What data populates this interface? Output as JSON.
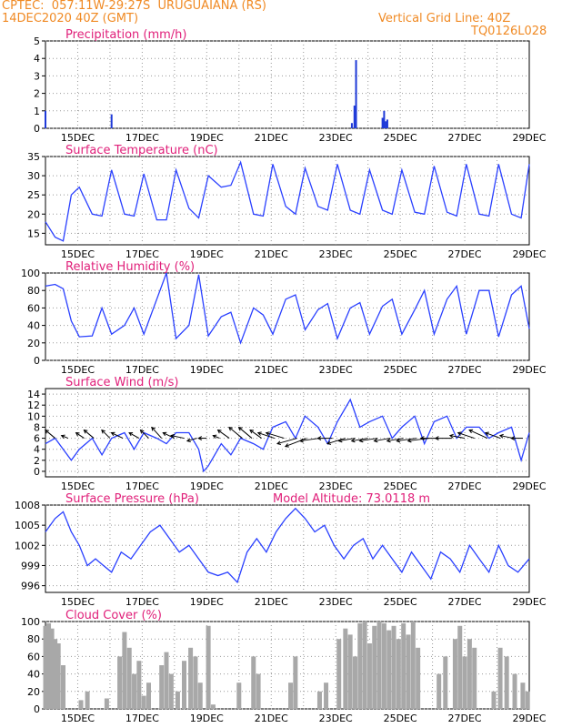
{
  "header": {
    "line1_left": "CPTEC:  057:11W-29:27S  URUGUAIANA (RS)",
    "line2_left": "14DEC2020 40Z (GMT)",
    "line1_right": "Vertical Grid Line: 40Z",
    "line2_right": "TQ0126L028"
  },
  "colors": {
    "header": "#f08a24",
    "title": "#e0207a",
    "line": "#2a40ff",
    "bar_blue": "#1f3ad8",
    "bar_gray": "#a8a8a8",
    "grid": "#999999"
  },
  "chart_data": [
    {
      "type": "bar",
      "title": "Precipitation (mm/h)",
      "ylim": [
        0,
        5
      ],
      "yticks": [
        "0",
        "1",
        "2",
        "3",
        "4",
        "5"
      ],
      "xticks": [
        "15DEC",
        "17DEC",
        "19DEC",
        "21DEC",
        "23DEC",
        "25DEC",
        "27DEC",
        "29DEC"
      ],
      "x": [
        14.0,
        16.05,
        23.5,
        23.58,
        23.63,
        24.45,
        24.5,
        24.55,
        24.6
      ],
      "values": [
        1.0,
        0.8,
        0.3,
        1.3,
        3.9,
        0.6,
        1.0,
        0.4,
        0.5
      ]
    },
    {
      "type": "line",
      "title": "Surface Temperature (nC)",
      "ylim": [
        12,
        35
      ],
      "yticks": [
        "15",
        "20",
        "25",
        "30",
        "35"
      ],
      "xticks": [
        "15DEC",
        "17DEC",
        "19DEC",
        "21DEC",
        "23DEC",
        "25DEC",
        "27DEC",
        "29DEC"
      ],
      "x": [
        14.0,
        14.3,
        14.55,
        14.8,
        15.05,
        15.45,
        15.75,
        16.05,
        16.45,
        16.75,
        17.05,
        17.45,
        17.75,
        18.05,
        18.45,
        18.75,
        19.05,
        19.45,
        19.75,
        20.05,
        20.45,
        20.75,
        21.05,
        21.45,
        21.75,
        22.05,
        22.45,
        22.75,
        23.05,
        23.45,
        23.75,
        24.05,
        24.45,
        24.75,
        25.05,
        25.45,
        25.75,
        26.05,
        26.45,
        26.75,
        27.05,
        27.45,
        27.75,
        28.05,
        28.45,
        28.75,
        29.0
      ],
      "values": [
        18,
        14,
        13,
        25,
        27,
        20,
        19.5,
        31.5,
        20,
        19.5,
        30.5,
        18.5,
        18.5,
        31.5,
        21.5,
        19,
        30,
        27,
        27.5,
        33.5,
        20,
        19.5,
        33,
        22,
        20,
        32,
        22,
        21,
        33,
        21,
        20,
        31.5,
        21,
        20,
        31.5,
        20.5,
        20,
        32.5,
        20.5,
        19.5,
        33,
        20,
        19.5,
        33,
        20,
        19,
        33
      ]
    },
    {
      "type": "line",
      "title": "Relative Humidity (%)",
      "ylim": [
        0,
        100
      ],
      "yticks": [
        "0",
        "20",
        "40",
        "60",
        "80",
        "100"
      ],
      "xticks": [
        "15DEC",
        "17DEC",
        "19DEC",
        "21DEC",
        "23DEC",
        "25DEC",
        "27DEC",
        "29DEC"
      ],
      "x": [
        14.0,
        14.3,
        14.55,
        14.8,
        15.05,
        15.45,
        15.75,
        16.05,
        16.45,
        16.75,
        17.05,
        17.45,
        17.75,
        18.05,
        18.45,
        18.75,
        19.05,
        19.45,
        19.75,
        20.05,
        20.45,
        20.75,
        21.05,
        21.45,
        21.75,
        22.05,
        22.45,
        22.75,
        23.05,
        23.45,
        23.75,
        24.05,
        24.45,
        24.75,
        25.05,
        25.45,
        25.75,
        26.05,
        26.45,
        26.75,
        27.05,
        27.45,
        27.75,
        28.05,
        28.45,
        28.75,
        29.0
      ],
      "values": [
        85,
        87,
        82,
        45,
        27,
        28,
        60,
        30,
        40,
        60,
        30,
        70,
        100,
        25,
        40,
        98,
        28,
        50,
        55,
        20,
        60,
        52,
        30,
        70,
        75,
        35,
        58,
        65,
        25,
        60,
        66,
        30,
        62,
        70,
        30,
        58,
        80,
        30,
        70,
        85,
        30,
        80,
        80,
        27,
        75,
        85,
        36
      ]
    },
    {
      "type": "line",
      "title": "Surface Wind (m/s)",
      "ylim": [
        -1,
        15
      ],
      "yticks": [
        "0",
        "2",
        "4",
        "6",
        "8",
        "10",
        "12",
        "14"
      ],
      "xticks": [
        "15DEC",
        "17DEC",
        "19DEC",
        "21DEC",
        "23DEC",
        "25DEC",
        "27DEC",
        "29DEC"
      ],
      "x": [
        14.0,
        14.3,
        14.55,
        14.8,
        15.05,
        15.45,
        15.75,
        16.05,
        16.45,
        16.75,
        17.05,
        17.45,
        17.75,
        18.05,
        18.45,
        18.75,
        18.9,
        19.05,
        19.45,
        19.75,
        20.05,
        20.45,
        20.75,
        21.05,
        21.45,
        21.75,
        22.05,
        22.45,
        22.75,
        23.05,
        23.45,
        23.75,
        24.05,
        24.45,
        24.75,
        25.05,
        25.45,
        25.75,
        26.05,
        26.45,
        26.75,
        27.05,
        27.45,
        27.75,
        28.05,
        28.45,
        28.75,
        29.0
      ],
      "values": [
        5,
        6,
        4,
        2,
        4,
        6,
        3,
        6,
        7,
        4,
        7,
        6,
        5,
        7,
        7,
        4,
        0,
        1,
        5,
        3,
        6,
        5,
        4,
        8,
        9,
        6,
        10,
        8,
        5,
        9,
        13,
        8,
        9,
        10,
        6,
        8,
        10,
        5,
        9,
        10,
        6,
        8,
        8,
        6,
        7,
        8,
        2,
        7
      ],
      "arrows_x": [
        14.3,
        14.7,
        15.2,
        15.5,
        16.0,
        16.4,
        16.9,
        17.2,
        17.6,
        18.0,
        18.3,
        18.7,
        19.0,
        19.4,
        19.7,
        20.1,
        20.4,
        20.7,
        21.1,
        21.4,
        21.8,
        22.1,
        22.5,
        22.9,
        23.3,
        23.6,
        24.0,
        24.3,
        24.7,
        25.1,
        25.5,
        25.9,
        26.2,
        26.6,
        27.0,
        27.3,
        27.7,
        28.1,
        28.5,
        28.8
      ],
      "arrows_u": [
        -6,
        -4,
        -5,
        -6,
        -5,
        -7,
        -6,
        -5,
        -6,
        -7,
        -8,
        -6,
        -5,
        -4,
        -7,
        -8,
        -8,
        -7,
        -10,
        -11,
        -12,
        -13,
        -12,
        -9,
        -11,
        -10,
        -10,
        -11,
        -10,
        -10,
        -12,
        -13,
        -11,
        -10,
        -9,
        -10,
        -11,
        -9,
        -8,
        -7
      ],
      "arrows_v": [
        3,
        1,
        2,
        3,
        3,
        2,
        2,
        3,
        4,
        2,
        1,
        -1,
        0,
        1,
        3,
        4,
        4,
        3,
        2,
        2,
        -2,
        -3,
        -1,
        0,
        -2,
        -1,
        -1,
        -1,
        -1,
        -1,
        -1,
        -1,
        0,
        0,
        1,
        2,
        3,
        2,
        1,
        0
      ]
    },
    {
      "type": "line",
      "title": "Surface Pressure (hPa)",
      "annotation": "Model Altitude: 73.0118 m",
      "ylim": [
        995,
        1008
      ],
      "yticks": [
        "996",
        "999",
        "1002",
        "1005",
        "1008"
      ],
      "xticks": [
        "15DEC",
        "17DEC",
        "19DEC",
        "21DEC",
        "23DEC",
        "25DEC",
        "27DEC",
        "29DEC"
      ],
      "x": [
        14.0,
        14.3,
        14.55,
        14.8,
        15.05,
        15.3,
        15.55,
        15.8,
        16.05,
        16.35,
        16.65,
        16.95,
        17.25,
        17.55,
        17.85,
        18.15,
        18.45,
        18.75,
        19.05,
        19.35,
        19.65,
        19.95,
        20.25,
        20.55,
        20.85,
        21.15,
        21.45,
        21.75,
        22.05,
        22.35,
        22.65,
        22.95,
        23.25,
        23.55,
        23.85,
        24.15,
        24.45,
        24.75,
        25.05,
        25.35,
        25.65,
        25.95,
        26.25,
        26.55,
        26.85,
        27.15,
        27.45,
        27.75,
        28.05,
        28.35,
        28.65,
        29.0
      ],
      "values": [
        1004,
        1006,
        1007,
        1004,
        1002,
        999,
        1000,
        999,
        998,
        1001,
        1000,
        1002,
        1004,
        1005,
        1003,
        1001,
        1002,
        1000,
        998,
        997.5,
        998,
        996.5,
        1001,
        1003,
        1001,
        1004,
        1006,
        1007.5,
        1006,
        1004,
        1005,
        1002,
        1000,
        1002,
        1003,
        1000,
        1002,
        1000,
        998,
        1001,
        999,
        997,
        1001,
        1000,
        998,
        1002,
        1000,
        998,
        1002,
        999,
        998,
        1000
      ]
    },
    {
      "type": "bar",
      "title": "Cloud Cover (%)",
      "ylim": [
        0,
        100
      ],
      "yticks": [
        "0",
        "20",
        "40",
        "60",
        "80",
        "100"
      ],
      "xticks": [
        "15DEC",
        "17DEC",
        "19DEC",
        "21DEC",
        "23DEC",
        "25DEC",
        "27DEC",
        "29DEC"
      ],
      "x": [
        14.0,
        14.1,
        14.2,
        14.3,
        14.4,
        14.55,
        15.1,
        15.3,
        15.9,
        16.3,
        16.45,
        16.6,
        16.75,
        16.9,
        17.05,
        17.2,
        17.6,
        17.75,
        17.9,
        18.1,
        18.3,
        18.5,
        18.65,
        18.8,
        19.05,
        19.2,
        20.0,
        20.45,
        20.6,
        21.6,
        21.75,
        22.5,
        22.7,
        23.1,
        23.3,
        23.45,
        23.6,
        23.75,
        23.9,
        24.05,
        24.2,
        24.35,
        24.5,
        24.65,
        24.8,
        24.95,
        25.1,
        25.25,
        25.4,
        25.55,
        26.2,
        26.4,
        26.7,
        26.85,
        27.0,
        27.15,
        27.3,
        27.9,
        28.1,
        28.3,
        28.55,
        28.8,
        28.95
      ],
      "values": [
        95,
        98,
        92,
        80,
        75,
        50,
        10,
        20,
        12,
        60,
        88,
        70,
        40,
        55,
        15,
        30,
        50,
        65,
        40,
        20,
        55,
        70,
        60,
        30,
        95,
        5,
        30,
        60,
        40,
        30,
        60,
        20,
        30,
        80,
        92,
        85,
        60,
        98,
        100,
        75,
        95,
        100,
        98,
        90,
        95,
        80,
        98,
        85,
        100,
        70,
        40,
        60,
        80,
        95,
        60,
        80,
        70,
        20,
        70,
        60,
        40,
        30,
        20
      ]
    }
  ]
}
